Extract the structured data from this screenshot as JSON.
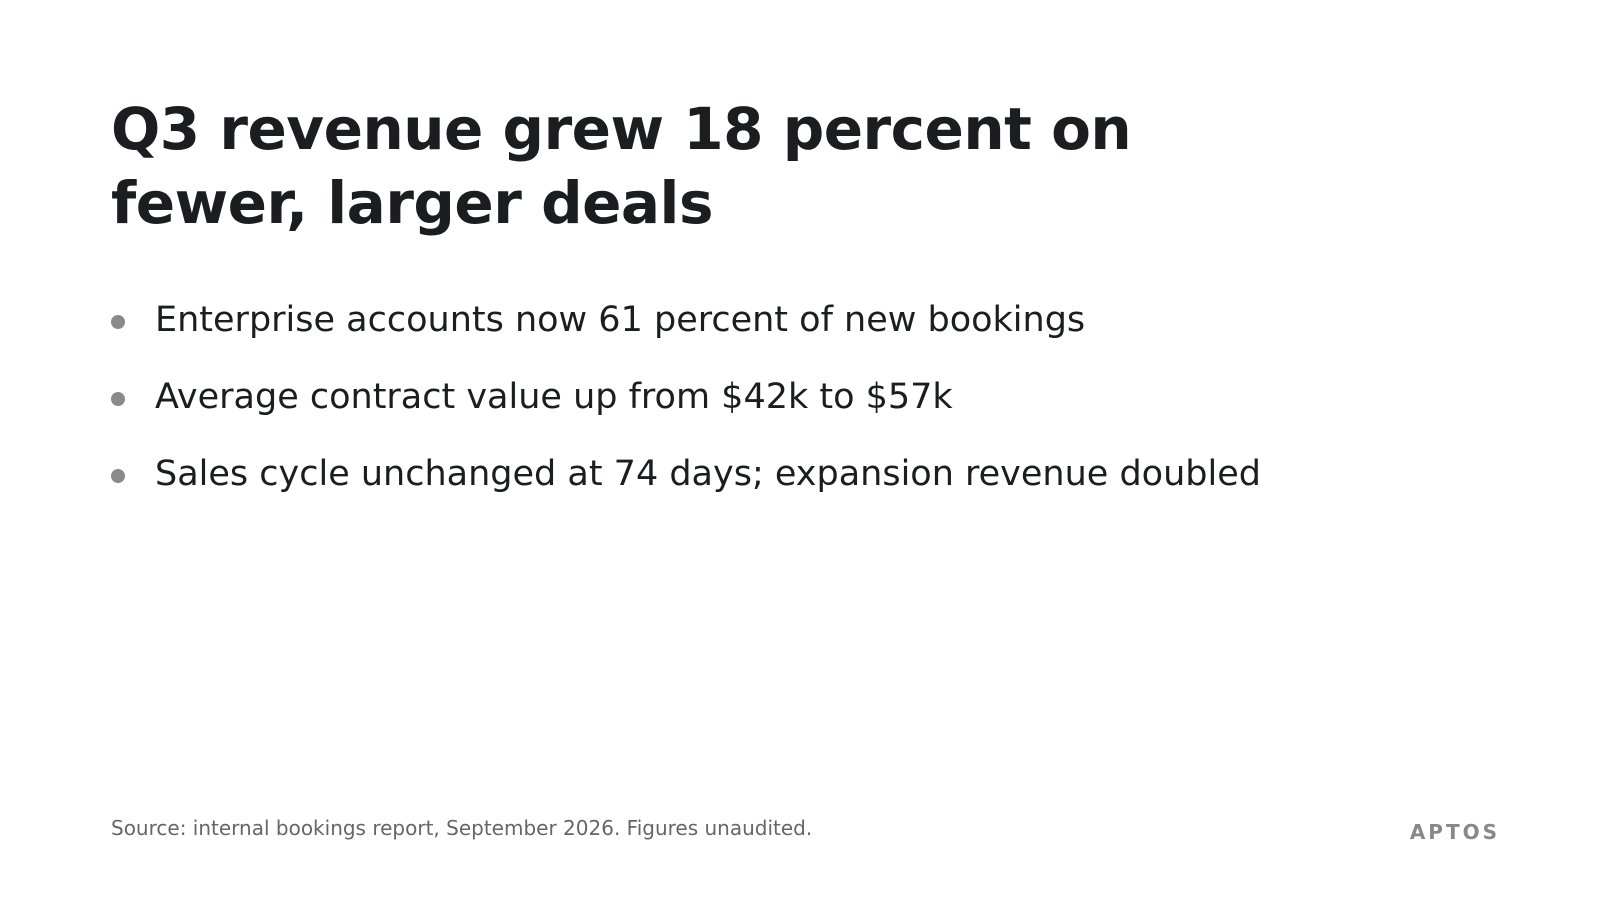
{
  "slide": {
    "title": "Q3 revenue grew 18 percent on fewer, larger deals",
    "bullets": [
      "Enterprise accounts now 61 percent of new bookings",
      "Average contract value up from $42k to $57k",
      "Sales cycle unchanged at 74 days; expansion revenue doubled"
    ],
    "footnote": "Source: internal bookings report, September 2026. Figures unaudited.",
    "brand": "APTOS"
  }
}
